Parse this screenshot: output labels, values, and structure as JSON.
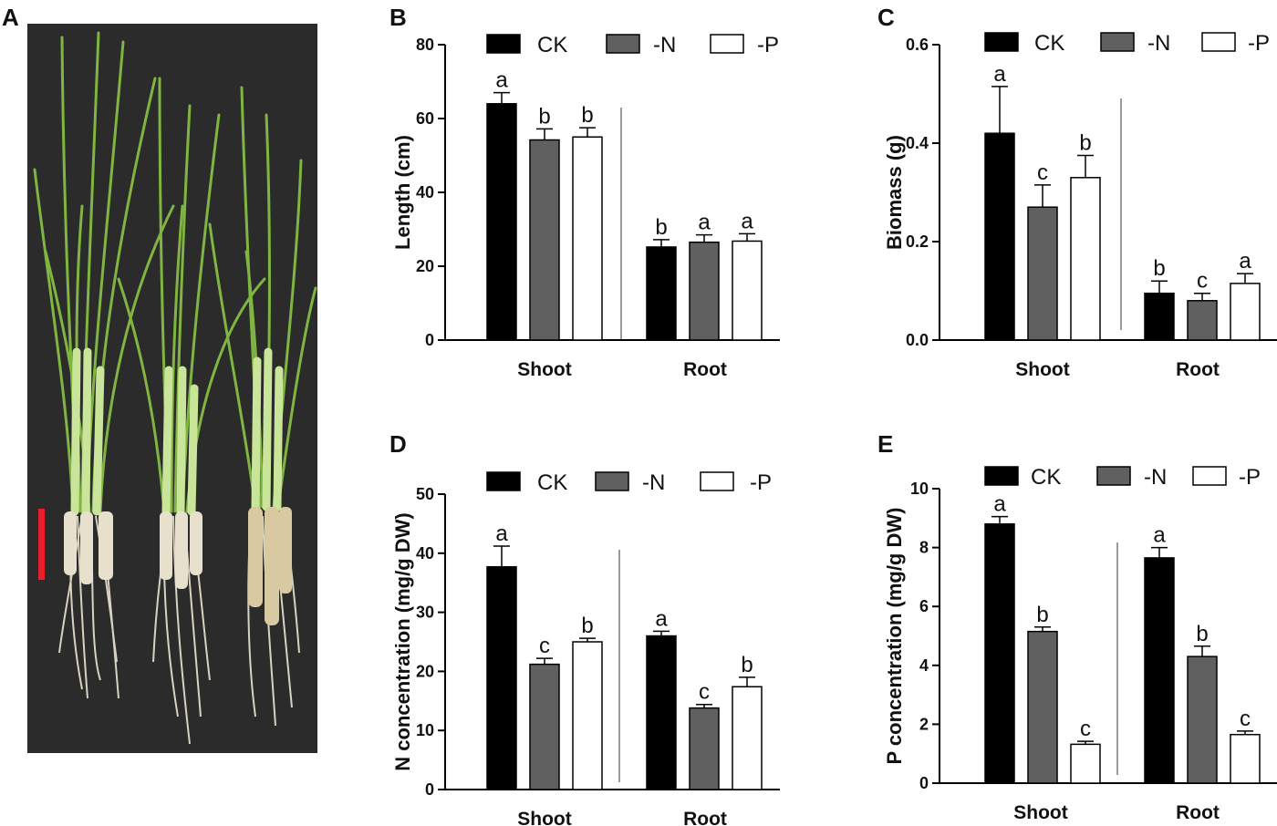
{
  "panel_labels": [
    "A",
    "B",
    "C",
    "D",
    "E"
  ],
  "colors": {
    "ck": "#000000",
    "n": "#606060",
    "p": "#ffffff",
    "scale_bar": "#e8202a",
    "photo_bg": "#2b2b2b"
  },
  "chart_data": [
    {
      "panel": "B",
      "type": "bar",
      "ylabel": "Length (cm)",
      "ylim": [
        0,
        80
      ],
      "yticks": [
        "0",
        "20",
        "40",
        "60",
        "80"
      ],
      "categories": [
        "Shoot",
        "Root"
      ],
      "legend": [
        "CK",
        "-N",
        "-P"
      ],
      "series": [
        {
          "name": "CK",
          "values": [
            64,
            25.2
          ],
          "errors": [
            3,
            2
          ],
          "letters": [
            "a",
            "b"
          ]
        },
        {
          "name": "-N",
          "values": [
            54.2,
            26.5
          ],
          "errors": [
            3,
            2
          ],
          "letters": [
            "b",
            "a"
          ]
        },
        {
          "name": "-P",
          "values": [
            55,
            26.8
          ],
          "errors": [
            2.5,
            2
          ],
          "letters": [
            "b",
            "a"
          ]
        }
      ]
    },
    {
      "panel": "C",
      "type": "bar",
      "ylabel": "Biomass (g)",
      "ylim": [
        0,
        0.6
      ],
      "yticks": [
        "0.0",
        "0.2",
        "0.4",
        "0.6"
      ],
      "categories": [
        "Shoot",
        "Root"
      ],
      "legend": [
        "CK",
        "-N",
        "-P"
      ],
      "series": [
        {
          "name": "CK",
          "values": [
            0.42,
            0.095
          ],
          "errors": [
            0.095,
            0.025
          ],
          "letters": [
            "a",
            "b"
          ]
        },
        {
          "name": "-N",
          "values": [
            0.27,
            0.08
          ],
          "errors": [
            0.045,
            0.015
          ],
          "letters": [
            "c",
            "c"
          ]
        },
        {
          "name": "-P",
          "values": [
            0.33,
            0.115
          ],
          "errors": [
            0.045,
            0.02
          ],
          "letters": [
            "b",
            "a"
          ]
        }
      ]
    },
    {
      "panel": "D",
      "type": "bar",
      "ylabel": "N concentration (mg/g DW)",
      "ylim": [
        0,
        50
      ],
      "yticks": [
        "0",
        "10",
        "20",
        "30",
        "40",
        "50"
      ],
      "categories": [
        "Shoot",
        "Root"
      ],
      "legend": [
        "CK",
        "-N",
        "-P"
      ],
      "series": [
        {
          "name": "CK",
          "values": [
            37.7,
            26
          ],
          "errors": [
            3.5,
            0.8
          ],
          "letters": [
            "a",
            "a"
          ]
        },
        {
          "name": "-N",
          "values": [
            21.2,
            13.8
          ],
          "errors": [
            1,
            0.6
          ],
          "letters": [
            "c",
            "c"
          ]
        },
        {
          "name": "-P",
          "values": [
            25,
            17.4
          ],
          "errors": [
            0.6,
            1.6
          ],
          "letters": [
            "b",
            "b"
          ]
        }
      ]
    },
    {
      "panel": "E",
      "type": "bar",
      "ylabel": "P concentration (mg/g DW)",
      "ylim": [
        0,
        10
      ],
      "yticks": [
        "0",
        "2",
        "4",
        "6",
        "8",
        "10"
      ],
      "categories": [
        "Shoot",
        "Root"
      ],
      "legend": [
        "CK",
        "-N",
        "-P"
      ],
      "series": [
        {
          "name": "CK",
          "values": [
            8.8,
            7.65
          ],
          "errors": [
            0.25,
            0.35
          ],
          "letters": [
            "a",
            "a"
          ]
        },
        {
          "name": "-N",
          "values": [
            5.15,
            4.3
          ],
          "errors": [
            0.15,
            0.35
          ],
          "letters": [
            "b",
            "b"
          ]
        },
        {
          "name": "-P",
          "values": [
            1.32,
            1.65
          ],
          "errors": [
            0.1,
            0.12
          ],
          "letters": [
            "c",
            "c"
          ]
        }
      ]
    }
  ]
}
